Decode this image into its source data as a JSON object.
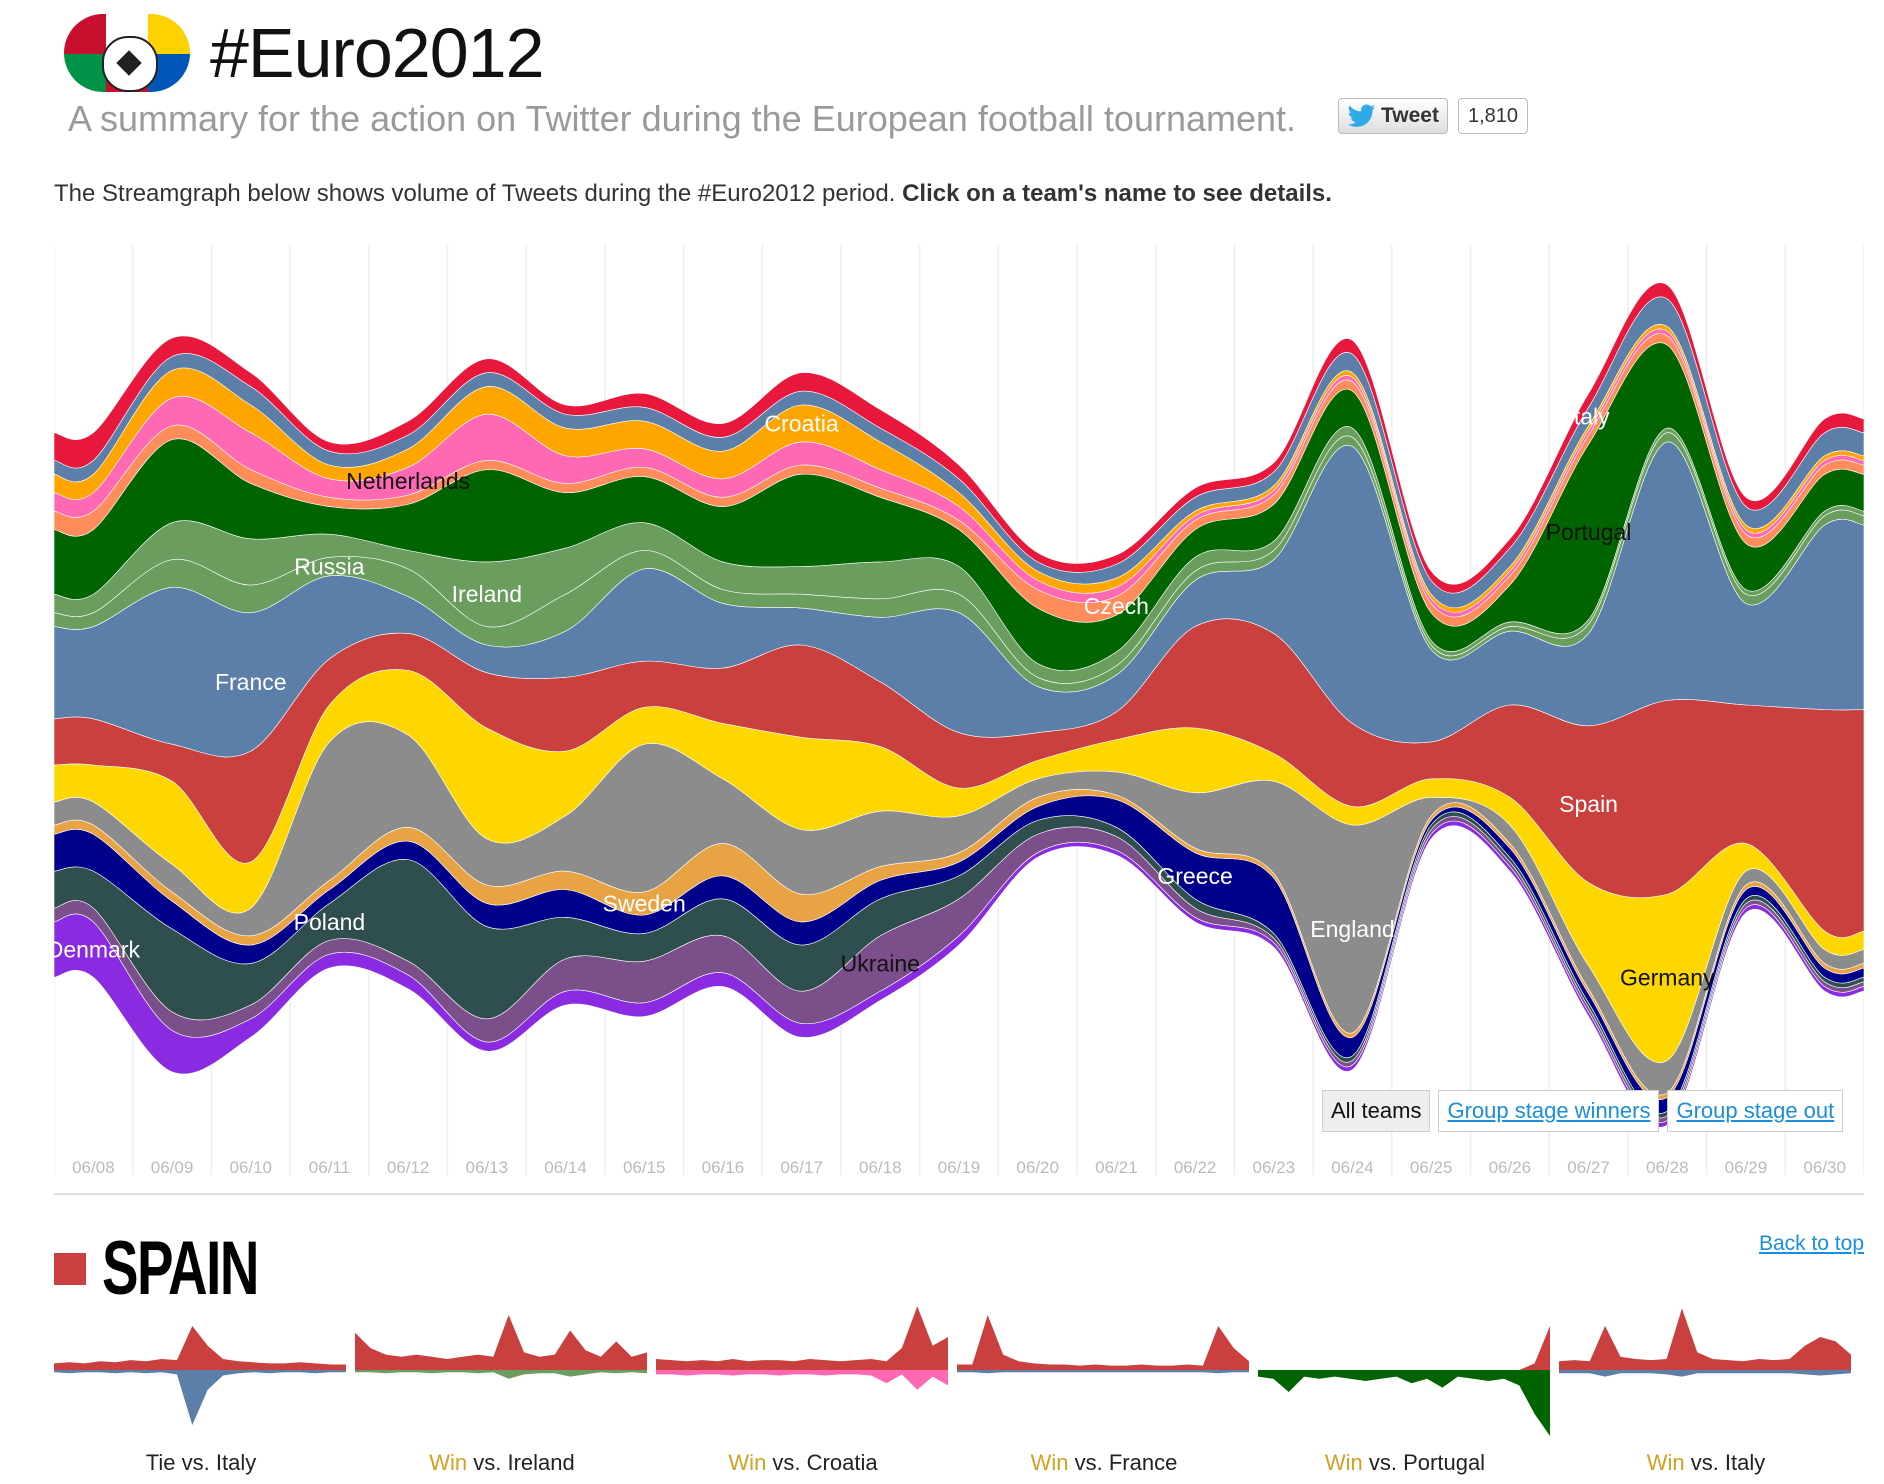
{
  "header": {
    "title": "#Euro2012",
    "subtitle": "A summary for the action on Twitter during the European football tournament.",
    "tweet_label": "Tweet",
    "tweet_count": "1,810",
    "bird_icon": "twitter-bird-icon",
    "logo_icon": "euro-football-logo-icon"
  },
  "intro": {
    "text": "The Streamgraph below shows volume of Tweets during the #Euro2012 period.",
    "bold": "Click on a team's name to see details."
  },
  "filters": [
    "All teams",
    "Group stage winners",
    "Group stage out"
  ],
  "chart_data": {
    "type": "area",
    "title": "",
    "x": [
      "06/08",
      "06/09",
      "06/10",
      "06/11",
      "06/12",
      "06/13",
      "06/14",
      "06/15",
      "06/16",
      "06/17",
      "06/18",
      "06/19",
      "06/20",
      "06/21",
      "06/22",
      "06/23",
      "06/24",
      "06/25",
      "06/26",
      "06/27",
      "06/28",
      "06/29",
      "06/30"
    ],
    "series": [
      {
        "name": "Denmark",
        "color": "#8a2be2",
        "values": [
          12,
          9,
          4,
          3,
          3,
          2,
          3,
          3,
          3,
          3,
          2,
          2,
          1,
          1,
          1,
          1,
          1,
          1,
          1,
          1,
          1,
          1,
          1
        ]
      },
      {
        "name": "Ukraine",
        "color": "#7a4f8a",
        "values": [
          3,
          4,
          3,
          3,
          3,
          5,
          7,
          9,
          8,
          7,
          12,
          8,
          4,
          3,
          2,
          1,
          1,
          1,
          1,
          1,
          1,
          1,
          1
        ]
      },
      {
        "name": "Poland",
        "color": "#2f4f4f",
        "values": [
          8,
          18,
          9,
          8,
          22,
          20,
          9,
          6,
          8,
          10,
          8,
          5,
          3,
          2,
          2,
          1,
          1,
          1,
          1,
          1,
          1,
          1,
          1
        ]
      },
      {
        "name": "Greece",
        "color": "#00008b",
        "values": [
          8,
          6,
          4,
          3,
          4,
          5,
          6,
          4,
          5,
          5,
          4,
          3,
          3,
          6,
          10,
          12,
          4,
          1,
          2,
          2,
          3,
          2,
          2
        ]
      },
      {
        "name": "Sweden",
        "color": "#e8a444",
        "values": [
          2,
          2,
          2,
          2,
          3,
          4,
          4,
          5,
          7,
          6,
          3,
          2,
          2,
          1,
          1,
          1,
          1,
          1,
          1,
          1,
          1,
          1,
          1
        ]
      },
      {
        "name": "England",
        "color": "#8c8c8c",
        "values": [
          5,
          6,
          6,
          30,
          20,
          10,
          12,
          32,
          14,
          14,
          12,
          8,
          4,
          5,
          12,
          20,
          45,
          4,
          4,
          5,
          7,
          3,
          3
        ]
      },
      {
        "name": "Germany",
        "color": "#ffd700",
        "values": [
          8,
          18,
          10,
          8,
          14,
          24,
          14,
          8,
          12,
          20,
          14,
          6,
          4,
          7,
          14,
          6,
          4,
          4,
          6,
          18,
          36,
          6,
          4
        ]
      },
      {
        "name": "Spain",
        "color": "#c9403f",
        "values": [
          10,
          8,
          24,
          10,
          8,
          12,
          16,
          10,
          12,
          20,
          14,
          12,
          6,
          6,
          22,
          26,
          18,
          8,
          20,
          34,
          42,
          30,
          48
        ]
      },
      {
        "name": "France",
        "color": "#5b7fa8",
        "values": [
          20,
          34,
          30,
          18,
          8,
          6,
          10,
          20,
          14,
          8,
          14,
          26,
          10,
          8,
          10,
          16,
          60,
          20,
          16,
          20,
          56,
          22,
          40
        ]
      },
      {
        "name": "Russia",
        "color": "#6b9e5e",
        "values": [
          3,
          6,
          6,
          4,
          6,
          4,
          8,
          4,
          3,
          3,
          4,
          4,
          2,
          2,
          2,
          2,
          2,
          1,
          1,
          2,
          2,
          2,
          2
        ]
      },
      {
        "name": "Ireland",
        "color": "#6b9e5e",
        "values": [
          4,
          8,
          10,
          5,
          4,
          14,
          10,
          6,
          6,
          6,
          8,
          6,
          3,
          3,
          3,
          2,
          2,
          1,
          1,
          1,
          1,
          1,
          1
        ]
      },
      {
        "name": "Portugal",
        "color": "#006400",
        "values": [
          14,
          18,
          12,
          6,
          10,
          20,
          12,
          10,
          12,
          20,
          14,
          8,
          12,
          8,
          6,
          8,
          8,
          6,
          8,
          38,
          18,
          10,
          8
        ]
      },
      {
        "name": "Czech",
        "color": "#ff8c5a",
        "values": [
          4,
          3,
          3,
          2,
          2,
          2,
          2,
          2,
          2,
          2,
          2,
          2,
          4,
          4,
          2,
          2,
          2,
          2,
          2,
          2,
          2,
          2,
          2
        ]
      },
      {
        "name": "Netherlands",
        "color": "#ff69b4",
        "values": [
          4,
          6,
          8,
          4,
          6,
          10,
          6,
          4,
          4,
          5,
          4,
          3,
          2,
          2,
          1,
          1,
          1,
          1,
          1,
          1,
          1,
          1,
          1
        ]
      },
      {
        "name": "Croatia",
        "color": "#ffa500",
        "values": [
          4,
          6,
          6,
          3,
          4,
          6,
          6,
          6,
          6,
          8,
          6,
          3,
          2,
          2,
          1,
          1,
          1,
          1,
          1,
          1,
          1,
          1,
          1
        ]
      },
      {
        "name": "Italy",
        "color": "#5b7fa8",
        "values": [
          3,
          3,
          4,
          3,
          3,
          3,
          3,
          3,
          3,
          3,
          3,
          3,
          2,
          3,
          3,
          3,
          4,
          3,
          4,
          4,
          6,
          4,
          5
        ]
      },
      {
        "name": "",
        "color": "#e8183c",
        "values": [
          6,
          4,
          3,
          2,
          3,
          3,
          2,
          3,
          3,
          4,
          4,
          3,
          2,
          2,
          2,
          2,
          3,
          2,
          2,
          3,
          3,
          2,
          3
        ]
      }
    ],
    "stream_labels": [
      {
        "text": "Netherlands",
        "at": "06/12"
      },
      {
        "text": "Croatia",
        "at": "06/17"
      },
      {
        "text": "Portugal",
        "at": "06/27"
      },
      {
        "text": "Italy",
        "at": "06/27"
      },
      {
        "text": "Ireland",
        "at": "06/13"
      },
      {
        "text": "Russia",
        "at": "06/11"
      },
      {
        "text": "France",
        "at": "06/10"
      },
      {
        "text": "Czech",
        "at": "06/21"
      },
      {
        "text": "Poland",
        "at": "06/11"
      },
      {
        "text": "Sweden",
        "at": "06/15"
      },
      {
        "text": "Greece",
        "at": "06/22"
      },
      {
        "text": "Ukraine",
        "at": "06/18"
      },
      {
        "text": "England",
        "at": "06/24"
      },
      {
        "text": "Spain",
        "at": "06/27"
      },
      {
        "text": "Germany",
        "at": "06/28"
      },
      {
        "text": "Denmark",
        "at": "06/08"
      }
    ],
    "grid": true,
    "legend": "inline"
  },
  "team": {
    "name": "SPAIN",
    "color": "#c9403f",
    "back_to_top": "Back to top",
    "matches": [
      {
        "result": "Tie",
        "vs": "vs. Italy",
        "opp_color": "#5b7fa8",
        "top": [
          6,
          7,
          6,
          8,
          7,
          9,
          8,
          10,
          9,
          40,
          22,
          10,
          8,
          7,
          6,
          6,
          7,
          6,
          5,
          5
        ],
        "bottom": [
          2,
          3,
          2,
          2,
          3,
          2,
          3,
          2,
          4,
          50,
          18,
          5,
          3,
          2,
          3,
          2,
          2,
          3,
          2,
          2
        ]
      },
      {
        "result": "Win",
        "vs": "vs. Ireland",
        "opp_color": "#6b9e5e",
        "top": [
          34,
          20,
          14,
          12,
          14,
          12,
          10,
          12,
          14,
          12,
          50,
          16,
          12,
          14,
          36,
          18,
          12,
          26,
          12,
          16
        ],
        "bottom": [
          2,
          2,
          3,
          2,
          2,
          3,
          2,
          2,
          3,
          2,
          8,
          4,
          3,
          3,
          6,
          4,
          2,
          3,
          2,
          3
        ]
      },
      {
        "result": "Win",
        "vs": "vs. Croatia",
        "opp_color": "#ff69b4",
        "top": [
          10,
          9,
          8,
          9,
          8,
          10,
          8,
          9,
          9,
          8,
          10,
          9,
          8,
          9,
          10,
          8,
          20,
          58,
          22,
          30
        ],
        "bottom": [
          4,
          4,
          5,
          4,
          4,
          5,
          4,
          4,
          5,
          4,
          4,
          5,
          4,
          4,
          5,
          12,
          4,
          18,
          6,
          14
        ]
      },
      {
        "result": "Win",
        "vs": "vs. France",
        "opp_color": "#5b7fa8",
        "top": [
          5,
          5,
          50,
          14,
          8,
          6,
          5,
          5,
          4,
          5,
          4,
          4,
          5,
          4,
          4,
          5,
          4,
          40,
          20,
          8
        ],
        "bottom": [
          2,
          2,
          3,
          2,
          2,
          2,
          2,
          2,
          2,
          2,
          2,
          2,
          2,
          2,
          2,
          2,
          2,
          3,
          2,
          2
        ]
      },
      {
        "result": "Win",
        "vs": "vs. Portugal",
        "opp_color": "#006400",
        "top": [
          0,
          0,
          0,
          0,
          0,
          0,
          0,
          0,
          0,
          0,
          0,
          0,
          0,
          0,
          0,
          0,
          0,
          0,
          6,
          40
        ],
        "bottom": [
          6,
          8,
          20,
          6,
          8,
          6,
          8,
          10,
          8,
          6,
          12,
          8,
          16,
          6,
          8,
          10,
          8,
          14,
          40,
          60
        ]
      },
      {
        "result": "Win",
        "vs": "vs. Italy",
        "opp_color": "#5b7fa8",
        "top": [
          8,
          9,
          8,
          40,
          12,
          10,
          9,
          10,
          56,
          16,
          10,
          9,
          8,
          10,
          9,
          10,
          22,
          30,
          26,
          14
        ],
        "bottom": [
          3,
          3,
          3,
          6,
          3,
          3,
          3,
          4,
          6,
          3,
          3,
          3,
          3,
          3,
          3,
          3,
          4,
          5,
          4,
          3
        ]
      }
    ]
  }
}
